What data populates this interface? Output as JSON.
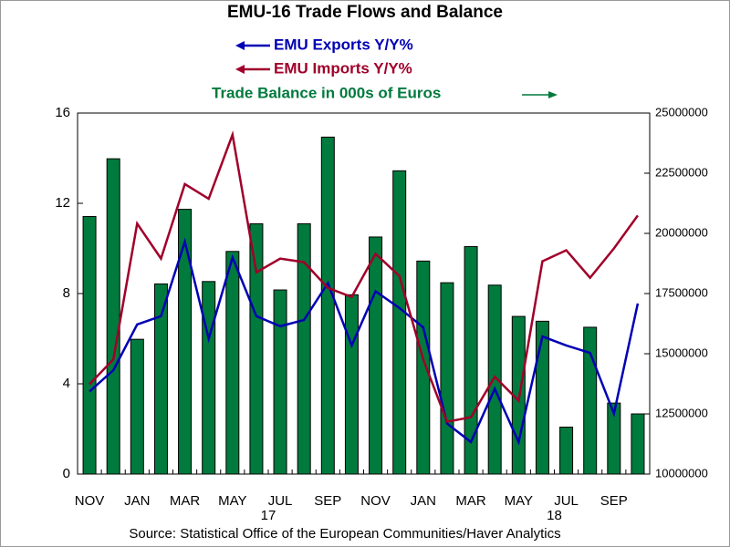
{
  "chart_data": {
    "type": "bar_line",
    "title": "EMU-16 Trade Flows and Balance",
    "categories": [
      "NOV",
      null,
      "JAN",
      null,
      "MAR",
      null,
      "MAY",
      null,
      "JUL",
      null,
      "SEP",
      null,
      "NOV",
      null,
      "JAN",
      null,
      "MAR",
      null,
      "MAY",
      null,
      "JUL",
      null,
      "SEP",
      null
    ],
    "year_labels": [
      null,
      null,
      null,
      null,
      null,
      null,
      null,
      null,
      "17",
      null,
      null,
      null,
      null,
      null,
      null,
      null,
      null,
      null,
      null,
      null,
      "18",
      null,
      null,
      null
    ],
    "series": [
      {
        "name": "EMU Exports Y/Y%",
        "color": "#0000b4",
        "type": "line",
        "axis": "y",
        "values": [
          3.66,
          4.6,
          6.63,
          7.0,
          10.3,
          6.0,
          9.6,
          7.0,
          6.55,
          6.83,
          8.46,
          5.7,
          8.1,
          7.36,
          6.5,
          2.24,
          1.42,
          3.78,
          1.42,
          6.1,
          5.7,
          5.37,
          2.68,
          7.56
        ]
      },
      {
        "name": "EMU Imports Y/Y%",
        "color": "#a0002a",
        "type": "line",
        "axis": "y",
        "values": [
          3.98,
          5.08,
          11.1,
          9.55,
          12.85,
          12.2,
          15.04,
          8.94,
          9.55,
          9.39,
          8.25,
          7.85,
          9.76,
          8.78,
          5.08,
          2.32,
          2.52,
          4.31,
          3.25,
          9.43,
          9.92,
          8.7,
          10.0,
          11.46
        ]
      },
      {
        "name": "Trade Balance in 000s of Euros",
        "color": "#007a3d",
        "type": "bar",
        "axis": "y2",
        "values": [
          20700000,
          23100000,
          15600000,
          17900000,
          21000000,
          18000000,
          19250000,
          20400000,
          17650000,
          20400000,
          24000000,
          17450000,
          19850000,
          22600000,
          18850000,
          17950000,
          19450000,
          17850000,
          16550000,
          16350000,
          11950000,
          16100000,
          12950000,
          12500000
        ]
      }
    ],
    "ylim": [
      0,
      16
    ],
    "yticks": [
      0,
      4,
      8,
      12,
      16
    ],
    "y2lim": [
      10000000,
      25000000
    ],
    "y2ticks": [
      10000000,
      12500000,
      15000000,
      17500000,
      20000000,
      22500000,
      25000000
    ],
    "source": "Source:  Statistical Office of the European Communities/Haver Analytics"
  }
}
